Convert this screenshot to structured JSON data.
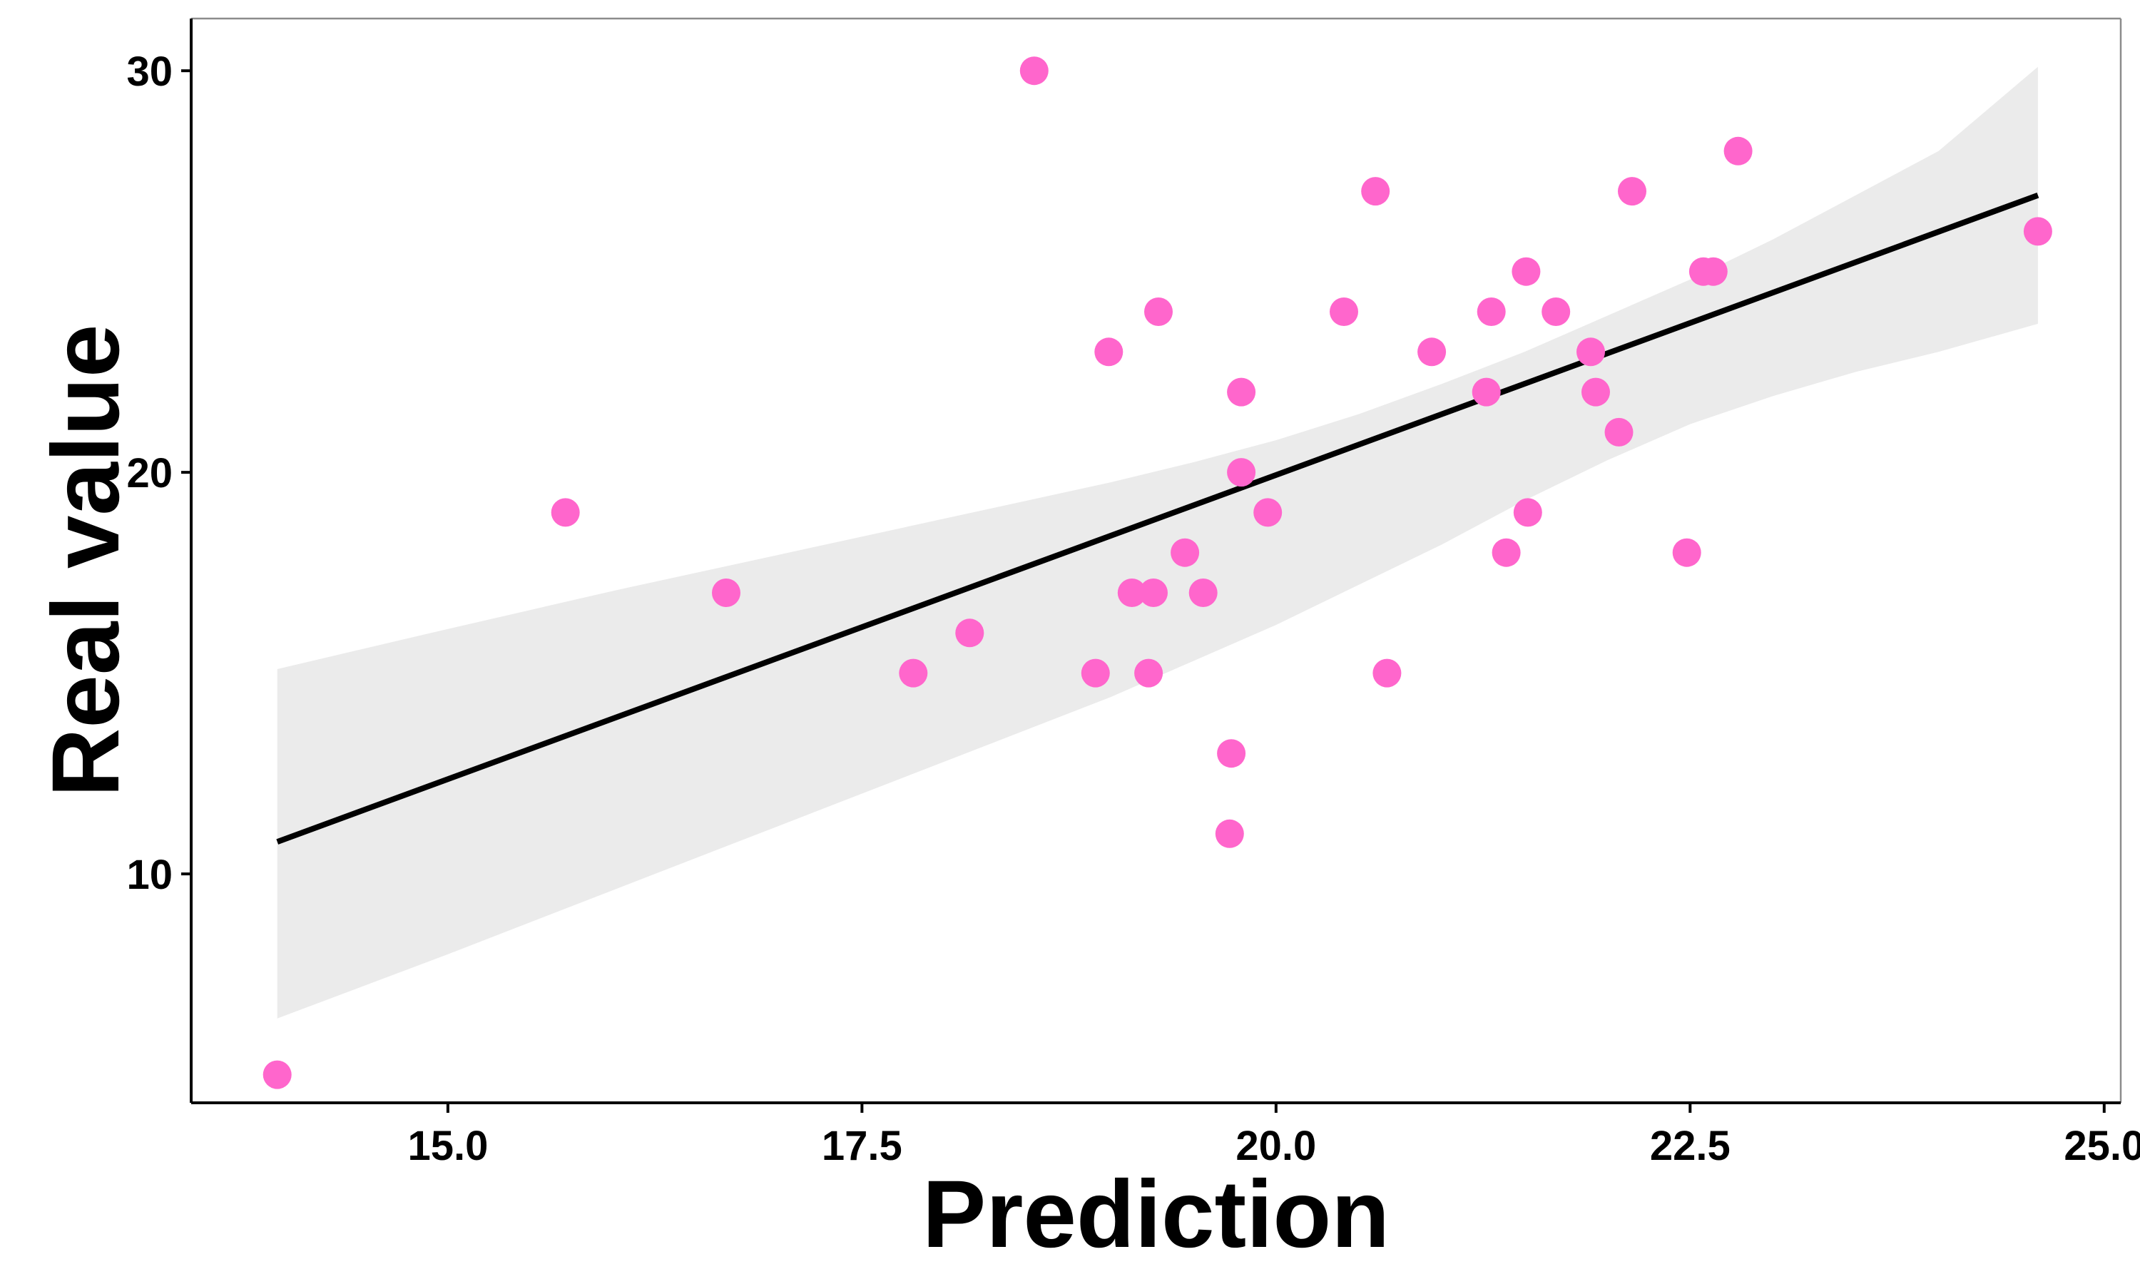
{
  "chart_data": {
    "type": "scatter",
    "xlabel": "Prediction",
    "ylabel": "Real value",
    "xlim": [
      13.45,
      25.1
    ],
    "ylim": [
      4.3,
      31.3
    ],
    "x_ticks": [
      15.0,
      17.5,
      20.0,
      22.5,
      25.0
    ],
    "x_tick_labels": [
      "15.0",
      "17.5",
      "20.0",
      "22.5",
      "25.0"
    ],
    "y_ticks": [
      10,
      20,
      30
    ],
    "y_tick_labels": [
      "10",
      "20",
      "30"
    ],
    "grid": false,
    "legend": "none",
    "colors": {
      "points": "#ff66cc",
      "fit_line": "#000000",
      "confidence_band": "#ebebeb",
      "axis": "#000000",
      "panel_border": "#8c8c8c"
    },
    "points": [
      {
        "x": 13.97,
        "y": 5
      },
      {
        "x": 15.71,
        "y": 19
      },
      {
        "x": 16.68,
        "y": 17
      },
      {
        "x": 17.81,
        "y": 15
      },
      {
        "x": 18.15,
        "y": 16
      },
      {
        "x": 18.54,
        "y": 30
      },
      {
        "x": 18.91,
        "y": 15
      },
      {
        "x": 18.99,
        "y": 23
      },
      {
        "x": 19.13,
        "y": 17
      },
      {
        "x": 19.23,
        "y": 15
      },
      {
        "x": 19.26,
        "y": 17
      },
      {
        "x": 19.29,
        "y": 24
      },
      {
        "x": 19.45,
        "y": 18
      },
      {
        "x": 19.56,
        "y": 17
      },
      {
        "x": 19.72,
        "y": 11
      },
      {
        "x": 19.73,
        "y": 13
      },
      {
        "x": 19.79,
        "y": 22
      },
      {
        "x": 19.79,
        "y": 20
      },
      {
        "x": 19.95,
        "y": 19
      },
      {
        "x": 20.41,
        "y": 24
      },
      {
        "x": 20.6,
        "y": 27
      },
      {
        "x": 20.67,
        "y": 15
      },
      {
        "x": 20.94,
        "y": 23
      },
      {
        "x": 21.27,
        "y": 22
      },
      {
        "x": 21.3,
        "y": 24
      },
      {
        "x": 21.39,
        "y": 18
      },
      {
        "x": 21.51,
        "y": 25
      },
      {
        "x": 21.52,
        "y": 19
      },
      {
        "x": 21.69,
        "y": 24
      },
      {
        "x": 21.9,
        "y": 23
      },
      {
        "x": 21.93,
        "y": 22
      },
      {
        "x": 22.07,
        "y": 21
      },
      {
        "x": 22.15,
        "y": 27
      },
      {
        "x": 22.48,
        "y": 18
      },
      {
        "x": 22.58,
        "y": 25
      },
      {
        "x": 22.64,
        "y": 25
      },
      {
        "x": 22.79,
        "y": 28
      },
      {
        "x": 24.6,
        "y": 26
      }
    ],
    "fit_line": {
      "x": [
        13.97,
        24.6
      ],
      "y": [
        10.8,
        26.9
      ]
    },
    "confidence_band": {
      "x": [
        13.97,
        15.0,
        16.0,
        17.0,
        18.0,
        19.0,
        19.5,
        20.0,
        20.5,
        21.0,
        21.5,
        22.0,
        22.5,
        23.0,
        23.5,
        24.0,
        24.6
      ],
      "upper": [
        15.1,
        16.1,
        17.05,
        17.95,
        18.85,
        19.75,
        20.25,
        20.8,
        21.45,
        22.2,
        23.0,
        23.9,
        24.8,
        25.8,
        26.9,
        28.0,
        30.1
      ],
      "lower": [
        6.4,
        8.0,
        9.6,
        11.2,
        12.8,
        14.4,
        15.3,
        16.2,
        17.2,
        18.2,
        19.3,
        20.3,
        21.2,
        21.9,
        22.5,
        23.0,
        23.7
      ]
    }
  }
}
